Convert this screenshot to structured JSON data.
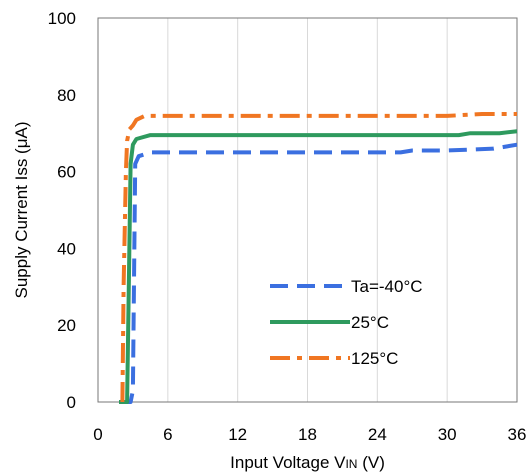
{
  "chart_data": {
    "type": "line",
    "xlabel": {
      "main": "Input Voltage V",
      "sub": "IN",
      "unit": " (V)"
    },
    "ylabel": "Supply Current Iss (μA)",
    "xlim": [
      0,
      36
    ],
    "ylim": [
      0,
      100
    ],
    "xticks": [
      0,
      6,
      12,
      18,
      24,
      30,
      36
    ],
    "yticks": [
      0,
      20,
      40,
      60,
      80,
      100
    ],
    "grid": "vertical",
    "legend_position": "lower-right",
    "series": [
      {
        "name": "Ta=-40°C",
        "color": "#3b6fe0",
        "dash": "dash",
        "x": [
          2.0,
          2.8,
          3.0,
          3.2,
          3.5,
          4.5,
          10,
          20,
          26,
          27,
          30,
          34,
          36
        ],
        "y": [
          0,
          0,
          3,
          62,
          64,
          65,
          65,
          65,
          65,
          65.5,
          65.5,
          66,
          67
        ]
      },
      {
        "name": "25°C",
        "color": "#2e9a5e",
        "dash": "solid",
        "x": [
          1.8,
          2.5,
          2.8,
          3.0,
          3.3,
          4.5,
          10,
          20,
          31,
          32,
          34.5,
          36
        ],
        "y": [
          0,
          0,
          62,
          67,
          68.5,
          69.5,
          69.5,
          69.5,
          69.5,
          70,
          70,
          70.5
        ]
      },
      {
        "name": "125°C",
        "color": "#f07622",
        "dash": "dashdot",
        "x": [
          2.1,
          2.2,
          2.4,
          2.5,
          2.7,
          3.0,
          3.3,
          4.0,
          10,
          20,
          30,
          33,
          36
        ],
        "y": [
          0,
          30,
          60,
          68,
          71,
          72,
          73.5,
          74.5,
          74.5,
          74.5,
          74.5,
          75,
          75
        ]
      }
    ]
  }
}
